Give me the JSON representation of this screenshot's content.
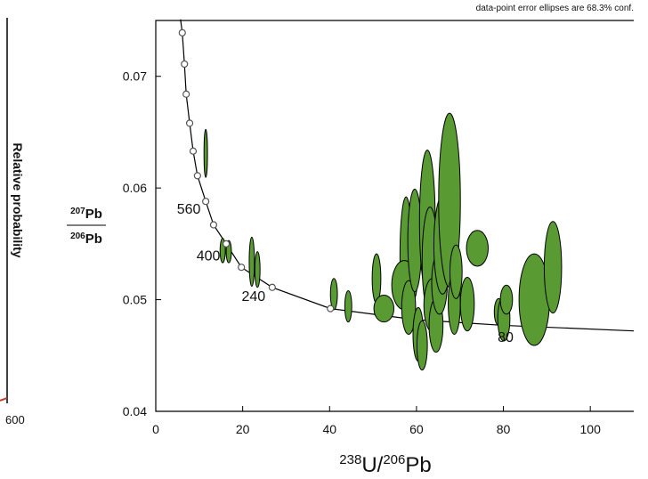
{
  "chart_data": {
    "type": "concordia",
    "note": "data-point error ellipses are 68.3% conf.",
    "xlabel": {
      "sup1": "238",
      "main1": "U/",
      "sup2": "206",
      "main2": "Pb"
    },
    "ylabel": {
      "top_sup": "207",
      "top_main": "Pb",
      "bottom_sup": "206",
      "bottom_main": "Pb"
    },
    "xlim": [
      0,
      110
    ],
    "xticks": [
      0,
      20,
      40,
      60,
      80,
      100
    ],
    "ylim": [
      0.04,
      0.075
    ],
    "yticks": [
      0.04,
      0.05,
      0.06,
      0.07
    ],
    "concordia": {
      "color": "#000000",
      "x": [
        5.7,
        6.1,
        6.6,
        7.0,
        7.8,
        8.6,
        9.6,
        11.5,
        13.3,
        16.2,
        19.7,
        26.8,
        40.2,
        50,
        60,
        80,
        110
      ],
      "y": [
        0.0751,
        0.0739,
        0.0711,
        0.0684,
        0.0658,
        0.0633,
        0.0611,
        0.0588,
        0.0567,
        0.055,
        0.0529,
        0.0511,
        0.0492,
        0.0487,
        0.0482,
        0.0477,
        0.0472
      ]
    },
    "age_markers": {
      "x": [
        6.1,
        6.6,
        7.0,
        7.8,
        8.6,
        9.6,
        11.5,
        13.3,
        16.2,
        19.7,
        26.8,
        40.2
      ],
      "y": [
        0.0739,
        0.0711,
        0.0684,
        0.0658,
        0.0633,
        0.0611,
        0.0588,
        0.0567,
        0.055,
        0.0529,
        0.0511,
        0.0492
      ]
    },
    "age_labels": [
      {
        "text": "560",
        "x": 7.6,
        "y": 0.0577
      },
      {
        "text": "400",
        "x": 12.1,
        "y": 0.0535
      },
      {
        "text": "240",
        "x": 22.5,
        "y": 0.0499
      },
      {
        "text": "80",
        "x": 80.5,
        "y": 0.0462
      }
    ],
    "ellipses": {
      "color": "#5a9a32",
      "x": [
        11.5,
        15.4,
        16.8,
        22.1,
        23.4,
        41.0,
        44.3,
        50.8,
        52.5,
        57.6,
        57.2,
        58.2,
        59.6,
        60.4,
        61.3,
        62.5,
        63.1,
        63.7,
        64.5,
        65.3,
        66.0,
        67.6,
        68.7,
        69.1,
        71.7,
        74.0,
        78.9,
        80.1,
        80.7,
        87.1,
        91.4
      ],
      "x_err": [
        0.4,
        0.6,
        0.6,
        0.6,
        0.6,
        0.8,
        0.8,
        1.0,
        2.3,
        1.4,
        2.9,
        1.6,
        1.6,
        1.2,
        1.2,
        1.8,
        1.8,
        2.0,
        1.6,
        1.8,
        2.0,
        2.5,
        1.4,
        1.4,
        1.6,
        2.5,
        1.0,
        1.4,
        1.4,
        3.5,
        2.0
      ],
      "y": [
        0.0631,
        0.0544,
        0.0543,
        0.0534,
        0.0527,
        0.0505,
        0.0494,
        0.0519,
        0.0492,
        0.0539,
        0.0513,
        0.0493,
        0.0553,
        0.0469,
        0.0459,
        0.057,
        0.0535,
        0.0495,
        0.0477,
        0.0515,
        0.0549,
        0.0589,
        0.0497,
        0.0525,
        0.0496,
        0.0546,
        0.0489,
        0.0483,
        0.05,
        0.05,
        0.0529
      ],
      "y_err": [
        0.00215,
        0.0011,
        0.001,
        0.0022,
        0.0016,
        0.0014,
        0.0014,
        0.0022,
        0.0012,
        0.0053,
        0.0022,
        0.0024,
        0.0046,
        0.0024,
        0.0022,
        0.0064,
        0.0048,
        0.0024,
        0.0024,
        0.0028,
        0.0044,
        0.0078,
        0.0028,
        0.0024,
        0.0024,
        0.0016,
        0.0012,
        0.002,
        0.0013,
        0.0041,
        0.0041
      ]
    }
  },
  "side_panel": {
    "ylabel": "Relative probability",
    "xtick": "600"
  }
}
